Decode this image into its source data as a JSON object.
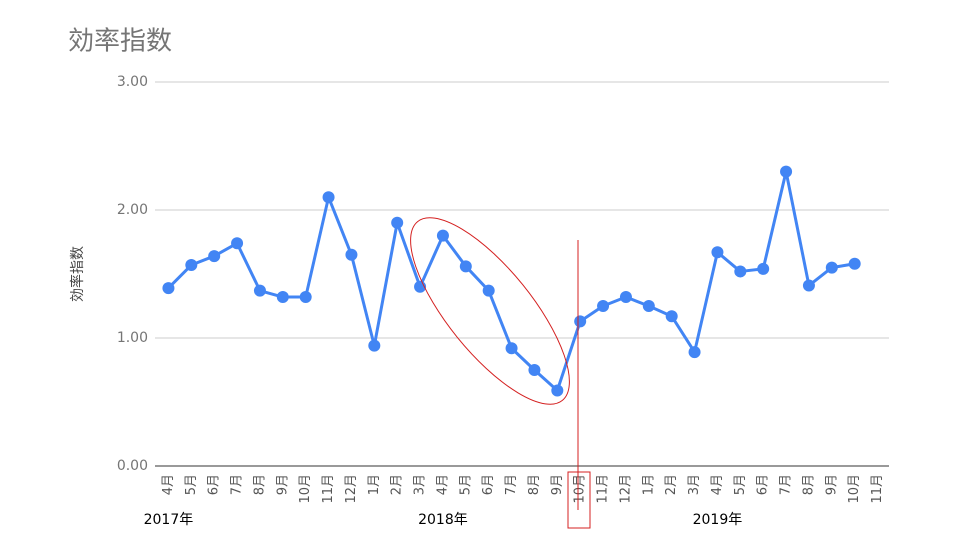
{
  "chart_data": {
    "type": "line",
    "title": "効率指数",
    "y_label": "効率指数",
    "categories": [
      "4月",
      "5月",
      "6月",
      "7月",
      "8月",
      "9月",
      "10月",
      "11月",
      "12月",
      "1月",
      "2月",
      "3月",
      "4月",
      "5月",
      "6月",
      "7月",
      "8月",
      "9月",
      "10月",
      "11月",
      "12月",
      "1月",
      "2月",
      "3月",
      "4月",
      "5月",
      "6月",
      "7月",
      "8月",
      "9月",
      "10月",
      "11月"
    ],
    "x_groups": [
      {
        "label": "2017年",
        "start": 0
      },
      {
        "label": "2018年",
        "start": 12
      },
      {
        "label": "2019年",
        "start": 24
      }
    ],
    "series": [
      {
        "name": "効率指数",
        "color": "#4285f4",
        "values": [
          1.39,
          1.57,
          1.64,
          1.74,
          1.37,
          1.32,
          1.32,
          2.1,
          1.65,
          0.94,
          1.9,
          1.4,
          1.8,
          1.56,
          1.37,
          0.92,
          0.75,
          0.59,
          1.13,
          1.25,
          1.32,
          1.25,
          1.17,
          0.89,
          1.67,
          1.52,
          1.54,
          2.3,
          1.41,
          1.55,
          1.58,
          null
        ]
      }
    ],
    "ylim": [
      0,
      3
    ],
    "yticks": [
      {
        "value": 0,
        "label": "0.00"
      },
      {
        "value": 1,
        "label": "1.00"
      },
      {
        "value": 2,
        "label": "2.00"
      },
      {
        "value": 3,
        "label": "3.00"
      }
    ],
    "grid": true
  }
}
